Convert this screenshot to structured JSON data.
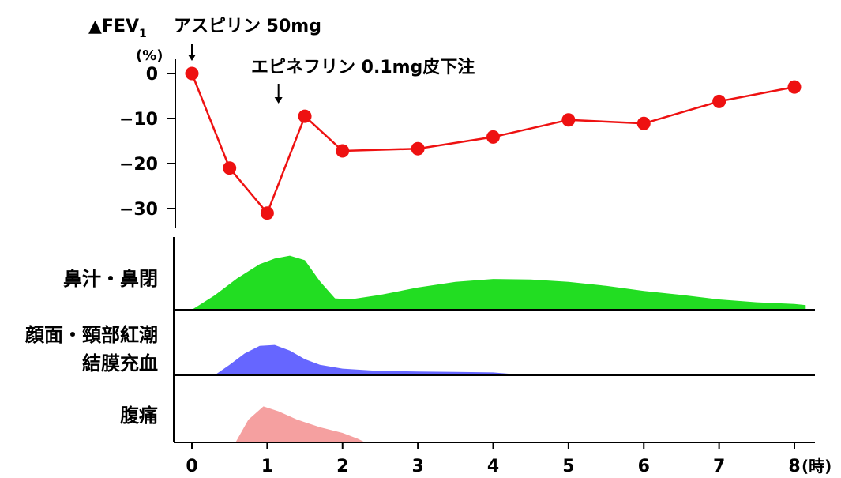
{
  "chart_data": {
    "type": "line",
    "y_title": "▲FEV",
    "y_title_subscript": "1",
    "y_unit": "(%)",
    "ylim": [
      -30,
      0
    ],
    "y_ticks": [
      0,
      -10,
      -20,
      -30
    ],
    "y_tick_labels": [
      "0",
      "−10",
      "−20",
      "−30"
    ],
    "xlim": [
      0,
      8
    ],
    "x_ticks": [
      0,
      1,
      2,
      3,
      4,
      5,
      6,
      7,
      8
    ],
    "x_tick_labels": [
      "0",
      "1",
      "2",
      "3",
      "4",
      "5",
      "6",
      "7",
      "8"
    ],
    "x_unit": "(時)",
    "series": [
      {
        "color": "#ee1111",
        "points": [
          [
            0,
            0
          ],
          [
            0.5,
            -21
          ],
          [
            1,
            -31
          ],
          [
            1.5,
            -9.5
          ],
          [
            2,
            -17.2
          ],
          [
            3,
            -16.7
          ],
          [
            4,
            -14.1
          ],
          [
            5,
            -10.3
          ],
          [
            6,
            -11.1
          ],
          [
            7,
            -6.2
          ],
          [
            8,
            -3
          ]
        ]
      }
    ],
    "annotations": [
      {
        "label": "アスピリン 50mg",
        "x": 0
      },
      {
        "label": "エピネフリン 0.1mg皮下注",
        "x": 1.15
      }
    ],
    "symptom_rows": [
      {
        "label_lines": [
          "鼻汁・鼻閉"
        ],
        "color": "#22dd22",
        "profile": [
          [
            0,
            0
          ],
          [
            0.3,
            0.25
          ],
          [
            0.6,
            0.55
          ],
          [
            0.9,
            0.8
          ],
          [
            1.1,
            0.9
          ],
          [
            1.3,
            0.95
          ],
          [
            1.5,
            0.87
          ],
          [
            1.7,
            0.5
          ],
          [
            1.9,
            0.2
          ],
          [
            2.1,
            0.18
          ],
          [
            2.5,
            0.26
          ],
          [
            3,
            0.39
          ],
          [
            3.5,
            0.49
          ],
          [
            4,
            0.54
          ],
          [
            4.5,
            0.53
          ],
          [
            5,
            0.49
          ],
          [
            5.5,
            0.42
          ],
          [
            6,
            0.33
          ],
          [
            6.5,
            0.26
          ],
          [
            7,
            0.18
          ],
          [
            7.5,
            0.13
          ],
          [
            8,
            0.1
          ],
          [
            8.15,
            0.08
          ]
        ]
      },
      {
        "label_lines": [
          "顔面・頸部紅潮",
          "結膜充血"
        ],
        "color": "#6666ff",
        "profile": [
          [
            0.3,
            0
          ],
          [
            0.5,
            0.22
          ],
          [
            0.7,
            0.46
          ],
          [
            0.9,
            0.62
          ],
          [
            1.1,
            0.64
          ],
          [
            1.3,
            0.52
          ],
          [
            1.5,
            0.34
          ],
          [
            1.7,
            0.22
          ],
          [
            2,
            0.14
          ],
          [
            2.5,
            0.09
          ],
          [
            3,
            0.08
          ],
          [
            3.5,
            0.07
          ],
          [
            4,
            0.06
          ],
          [
            4.3,
            0.02
          ],
          [
            4.4,
            0
          ]
        ]
      },
      {
        "label_lines": [
          "腹痛"
        ],
        "color": "#f5a0a0",
        "profile": [
          [
            0.58,
            0
          ],
          [
            0.75,
            0.6
          ],
          [
            0.95,
            0.95
          ],
          [
            1.15,
            0.82
          ],
          [
            1.4,
            0.6
          ],
          [
            1.7,
            0.4
          ],
          [
            2,
            0.25
          ],
          [
            2.2,
            0.1
          ],
          [
            2.3,
            0
          ]
        ]
      }
    ]
  }
}
